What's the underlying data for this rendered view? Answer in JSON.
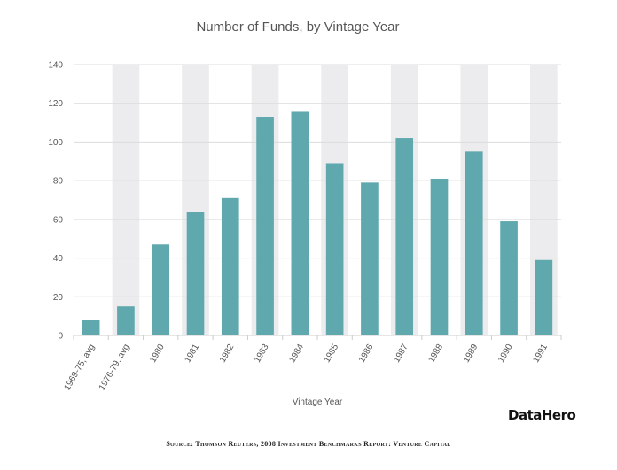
{
  "chart_data": {
    "type": "bar",
    "title": "Number of Funds, by Vintage Year",
    "xlabel": "Vintage Year",
    "ylabel": "",
    "ylim": [
      0,
      140
    ],
    "yticks": [
      0,
      20,
      40,
      60,
      80,
      100,
      120,
      140
    ],
    "grid": true,
    "legend": "none",
    "categories": [
      "1969-75, avg",
      "1976-79, avg",
      "1980",
      "1981",
      "1982",
      "1983",
      "1984",
      "1985",
      "1986",
      "1987",
      "1988",
      "1989",
      "1990",
      "1991"
    ],
    "values": [
      8,
      15,
      47,
      64,
      71,
      113,
      116,
      89,
      79,
      102,
      81,
      95,
      59,
      39
    ],
    "colors": {
      "bar": "#5fa8ad",
      "band": "#ececee",
      "grid": "#dcdcdc",
      "axis": "#cccccc"
    }
  },
  "brand": "DataHero",
  "source": "Source: Thomson Reuters, 2008 Investment Benchmarks Report: Venture Capital"
}
